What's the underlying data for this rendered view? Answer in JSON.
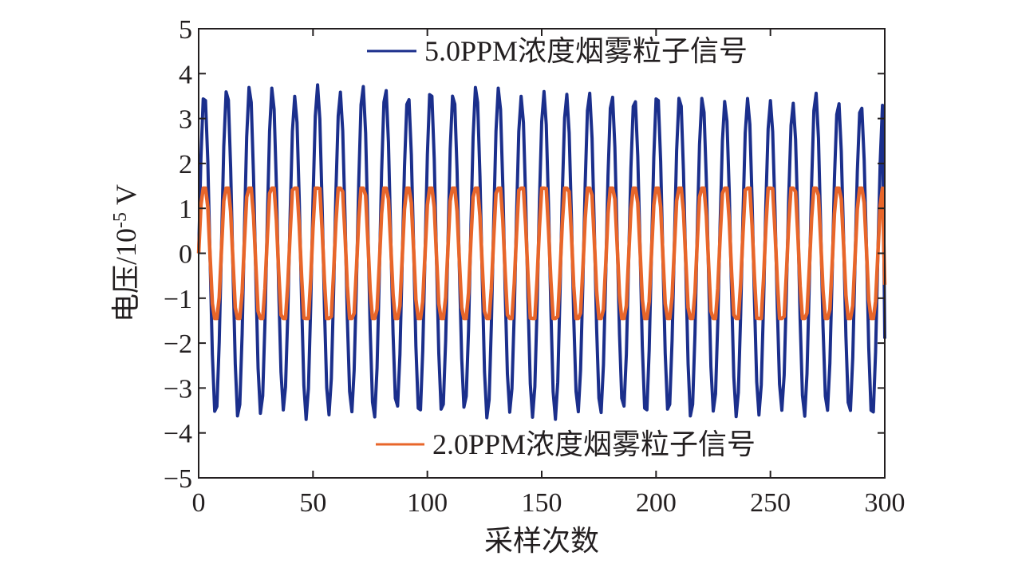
{
  "chart_data": {
    "type": "line",
    "title": "",
    "xlabel": "采样次数",
    "ylabel": {
      "base": "电压/10",
      "exp": "-5",
      "unit": " V"
    },
    "xlim": [
      0,
      300
    ],
    "ylim": [
      -5,
      5
    ],
    "xticks": [
      0,
      50,
      100,
      150,
      200,
      250,
      300
    ],
    "yticks": [
      5,
      4,
      3,
      2,
      1,
      0,
      -1,
      -2,
      -3,
      -4,
      -5
    ],
    "ytick_labels": [
      "5",
      "4",
      "3",
      "2",
      "1",
      "0",
      "−1",
      "−2",
      "−3",
      "−4",
      "−5"
    ],
    "grid": false,
    "sampling": {
      "x_start": 0,
      "x_end": 300,
      "step": 1
    },
    "series": [
      {
        "name": "5.0PPM浓度烟雾粒子信号",
        "color": "#1b2f8c",
        "period_samples": 9.9,
        "amplitude": 3.6,
        "peaks": [
          3.6,
          3.7,
          3.75,
          3.7,
          3.5,
          3.75,
          3.6,
          3.75,
          3.7,
          3.55,
          3.7,
          3.6,
          3.75,
          3.7,
          3.5,
          3.6,
          3.55,
          3.6,
          3.55,
          3.5,
          3.6,
          3.55,
          3.5,
          3.4,
          3.45,
          3.4,
          3.35,
          3.6,
          3.4,
          3.35,
          3.45,
          3.65
        ],
        "troughs": [
          -3.65,
          -3.7,
          -3.6,
          -3.5,
          -3.7,
          -3.6,
          -3.55,
          -3.7,
          -3.5,
          -3.65,
          -3.6,
          -3.5,
          -3.7,
          -3.55,
          -3.65,
          -3.7,
          -3.55,
          -3.6,
          -3.5,
          -3.65,
          -3.6,
          -3.7,
          -3.55,
          -3.65,
          -3.6,
          -3.5,
          -3.65,
          -3.55,
          -3.6,
          -3.7,
          -3.6
        ],
        "end_value": -1.9
      },
      {
        "name": "2.0PPM浓度烟雾粒子信号",
        "color": "#e8662a",
        "period_samples": 9.9,
        "amplitude": 1.45,
        "flat_top": true,
        "end_value": -0.7
      }
    ],
    "legend": {
      "placement": "top-center and bottom-center (one entry each)"
    }
  }
}
